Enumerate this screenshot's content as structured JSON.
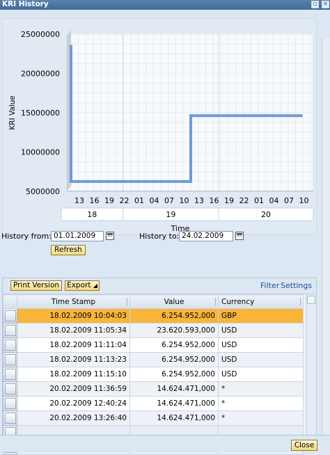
{
  "window": {
    "title": "KRI History"
  },
  "chart_data": {
    "type": "line",
    "title": "",
    "xlabel": "Time",
    "ylabel": "KRI Value",
    "ylim": [
      5000000,
      25000000
    ],
    "yticks": [
      "25000000",
      "20000000",
      "15000000",
      "10000000",
      "5000000"
    ],
    "hour_ticks": [
      "13",
      "16",
      "19",
      "22",
      "01",
      "04",
      "07",
      "10",
      "13",
      "16",
      "19",
      "22",
      "01",
      "04",
      "07",
      "10"
    ],
    "day_labels": [
      "18",
      "19",
      "20"
    ],
    "grid": true,
    "series": [
      {
        "name": "",
        "x_hours": [
          0,
          0,
          0,
          30,
          30,
          58
        ],
        "y": [
          23620593,
          6254952,
          6254952,
          6254952,
          14624471,
          14624471
        ]
      }
    ],
    "color": "#6f9bd4"
  },
  "history": {
    "from_label": "History from:",
    "from_value": "01.01.2009",
    "to_label": "History to:",
    "to_value": "24.02.2009",
    "refresh_label": "Refresh"
  },
  "toolbar": {
    "print_label": "Print Version",
    "export_label": "Export",
    "filter_label": "Filter",
    "settings_label": "Settings"
  },
  "table": {
    "columns": [
      "Time Stamp",
      "Value",
      "Currency"
    ],
    "rows": [
      {
        "ts": "18.02.2009 10:04:03",
        "value": "6.254.952,000",
        "currency": "GBP"
      },
      {
        "ts": "18.02.2009 11:05:34",
        "value": "23.620.593,000",
        "currency": "USD"
      },
      {
        "ts": "18.02.2009 11:11:04",
        "value": "6.254.952,000",
        "currency": "USD"
      },
      {
        "ts": "18.02.2009 11:13:23",
        "value": "6.254.952,000",
        "currency": "USD"
      },
      {
        "ts": "18.02.2009 11:15:10",
        "value": "6.254.952,000",
        "currency": "USD"
      },
      {
        "ts": "20.02.2009 11:36:59",
        "value": "14.624.471,000",
        "currency": "*"
      },
      {
        "ts": "20.02.2009 12:40:24",
        "value": "14.624.471,000",
        "currency": "*"
      },
      {
        "ts": "20.02.2009 13:26:40",
        "value": "14.624.471,000",
        "currency": "*"
      }
    ],
    "selected_row": 0
  },
  "footer": {
    "close_label": "Close"
  }
}
